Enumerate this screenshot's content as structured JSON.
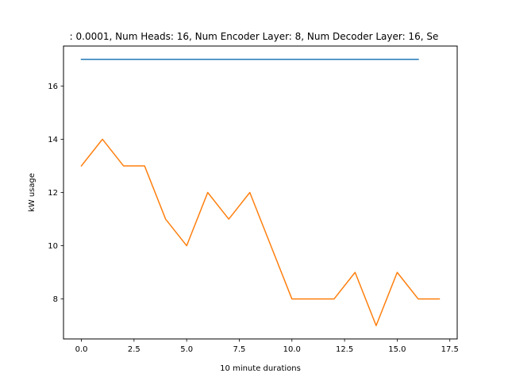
{
  "chart_data": {
    "type": "line",
    "title": ": 0.0001, Num Heads: 16, Num Encoder Layer: 8, Num Decoder Layer: 16, Se",
    "xlabel": "10 minute durations",
    "ylabel": "kW usage",
    "xlim": [
      -0.85,
      17.85
    ],
    "ylim": [
      6.5,
      17.5
    ],
    "xticks": [
      0.0,
      2.5,
      5.0,
      7.5,
      10.0,
      12.5,
      15.0,
      17.5
    ],
    "xtick_labels": [
      "0.0",
      "2.5",
      "5.0",
      "7.5",
      "10.0",
      "12.5",
      "15.0",
      "17.5"
    ],
    "yticks": [
      8,
      10,
      12,
      14,
      16
    ],
    "ytick_labels": [
      "8",
      "10",
      "12",
      "14",
      "16"
    ],
    "grid": false,
    "legend": "none",
    "series": [
      {
        "color": "#1f77b4",
        "x": [
          0,
          1,
          2,
          3,
          4,
          5,
          6,
          7,
          8,
          9,
          10,
          11,
          12,
          13,
          14,
          15,
          16
        ],
        "values": [
          17,
          17,
          17,
          17,
          17,
          17,
          17,
          17,
          17,
          17,
          17,
          17,
          17,
          17,
          17,
          17,
          17
        ]
      },
      {
        "color": "#ff7f0e",
        "x": [
          0,
          1,
          2,
          3,
          4,
          5,
          6,
          7,
          8,
          9,
          10,
          11,
          12,
          13,
          14,
          15,
          16,
          17
        ],
        "values": [
          13,
          14,
          13,
          13,
          11,
          10,
          12,
          11,
          12,
          10,
          8,
          8,
          8,
          9,
          7,
          9,
          8,
          8
        ]
      }
    ]
  }
}
